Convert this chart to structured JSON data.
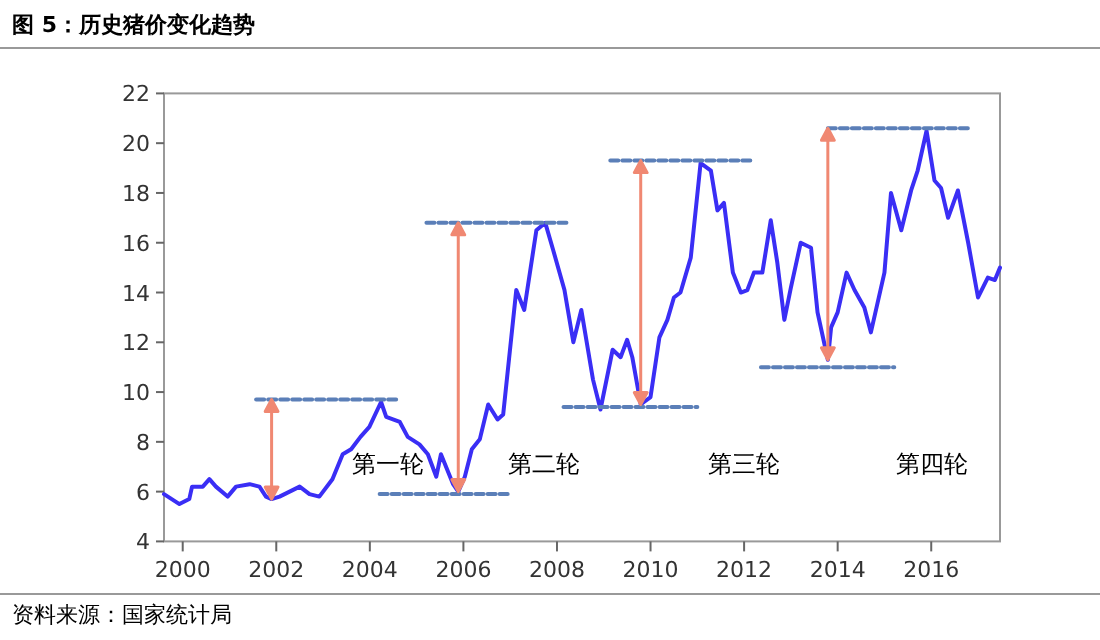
{
  "chart_data": {
    "type": "line",
    "title": "图 5：历史猪价变化趋势",
    "annotations": [
      "第一轮",
      "第二轮",
      "第三轮",
      "第四轮",
      "资料来源：国家统计局"
    ],
    "xlim": [
      1999.6,
      2017.47
    ],
    "xticks": [
      2000,
      2002,
      2004,
      2006,
      2008,
      2010,
      2012,
      2014,
      2016
    ],
    "ylim": [
      4,
      22
    ],
    "yticks": [
      4,
      6,
      8,
      10,
      12,
      14,
      16,
      18,
      20,
      22
    ],
    "series": [
      {
        "color": "#3a2ef5",
        "line_style": "solid",
        "x": [
          1999.6,
          1999.93,
          2000.14,
          2000.2,
          2000.43,
          2000.57,
          2000.71,
          2000.96,
          2001.14,
          2001.43,
          2001.64,
          2001.78,
          2001.9,
          2002.07,
          2002.5,
          2002.71,
          2002.92,
          2003.2,
          2003.42,
          2003.6,
          2003.8,
          2003.99,
          2004.24,
          2004.35,
          2004.64,
          2004.81,
          2005.06,
          2005.24,
          2005.42,
          2005.52,
          2005.78,
          2005.89,
          2006.03,
          2006.18,
          2006.35,
          2006.53,
          2006.73,
          2006.85,
          2007.13,
          2007.3,
          2007.56,
          2007.75,
          2007.92,
          2008.16,
          2008.35,
          2008.52,
          2008.77,
          2008.93,
          2009.19,
          2009.36,
          2009.5,
          2009.61,
          2009.79,
          2009.86,
          2010.0,
          2010.19,
          2010.36,
          2010.5,
          2010.64,
          2010.86,
          2011.07,
          2011.29,
          2011.43,
          2011.57,
          2011.76,
          2011.93,
          2012.07,
          2012.21,
          2012.39,
          2012.57,
          2012.71,
          2012.86,
          2013.0,
          2013.21,
          2013.43,
          2013.57,
          2013.79,
          2013.86,
          2014.0,
          2014.19,
          2014.36,
          2014.57,
          2014.71,
          2015.0,
          2015.14,
          2015.36,
          2015.57,
          2015.71,
          2015.9,
          2016.07,
          2016.21,
          2016.36,
          2016.57,
          2016.79,
          2017.0,
          2017.21,
          2017.36,
          2017.47
        ],
        "values": [
          5.9,
          5.5,
          5.7,
          6.2,
          6.2,
          6.5,
          6.2,
          5.8,
          6.2,
          6.3,
          6.2,
          5.8,
          5.7,
          5.8,
          6.2,
          5.9,
          5.8,
          6.5,
          7.5,
          7.7,
          8.2,
          8.6,
          9.6,
          9.0,
          8.8,
          8.2,
          7.9,
          7.5,
          6.6,
          7.5,
          6.3,
          6.0,
          6.6,
          7.7,
          8.1,
          9.5,
          8.9,
          9.1,
          14.1,
          13.3,
          16.5,
          16.8,
          15.7,
          14.1,
          12.0,
          13.3,
          10.5,
          9.3,
          11.7,
          11.4,
          12.1,
          11.4,
          9.5,
          9.6,
          9.8,
          12.2,
          12.9,
          13.8,
          14.0,
          15.4,
          19.2,
          18.9,
          17.3,
          17.6,
          14.8,
          14.0,
          14.1,
          14.8,
          14.8,
          16.9,
          15.2,
          12.9,
          14.2,
          16.0,
          15.8,
          13.2,
          11.3,
          12.6,
          13.2,
          14.8,
          14.1,
          13.4,
          12.4,
          14.8,
          18.0,
          16.5,
          18.1,
          18.9,
          20.5,
          18.5,
          18.2,
          17.0,
          18.1,
          16.0,
          13.8,
          14.6,
          14.5,
          15.0
        ]
      },
      {
        "color": "#5b7fb8",
        "line_style": "dashed",
        "x": [
          2001.57,
          2004.64
        ],
        "values": [
          9.7,
          9.7
        ]
      },
      {
        "color": "#5b7fb8",
        "line_style": "dashed",
        "x": [
          2005.21,
          2008.27
        ],
        "values": [
          16.8,
          16.8
        ]
      },
      {
        "color": "#5b7fb8",
        "line_style": "dashed",
        "x": [
          2004.21,
          2006.99
        ],
        "values": [
          5.9,
          5.9
        ]
      },
      {
        "color": "#5b7fb8",
        "line_style": "dashed",
        "x": [
          2008.14,
          2011.0
        ],
        "values": [
          9.4,
          9.4
        ]
      },
      {
        "color": "#5b7fb8",
        "line_style": "dashed",
        "x": [
          2009.14,
          2012.21
        ],
        "values": [
          19.3,
          19.3
        ]
      },
      {
        "color": "#5b7fb8",
        "line_style": "dashed",
        "x": [
          2012.36,
          2015.21
        ],
        "values": [
          11.0,
          11.0
        ]
      },
      {
        "color": "#5b7fb8",
        "line_style": "dashed",
        "x": [
          2013.79,
          2016.86
        ],
        "values": [
          20.6,
          20.6
        ]
      }
    ]
  }
}
